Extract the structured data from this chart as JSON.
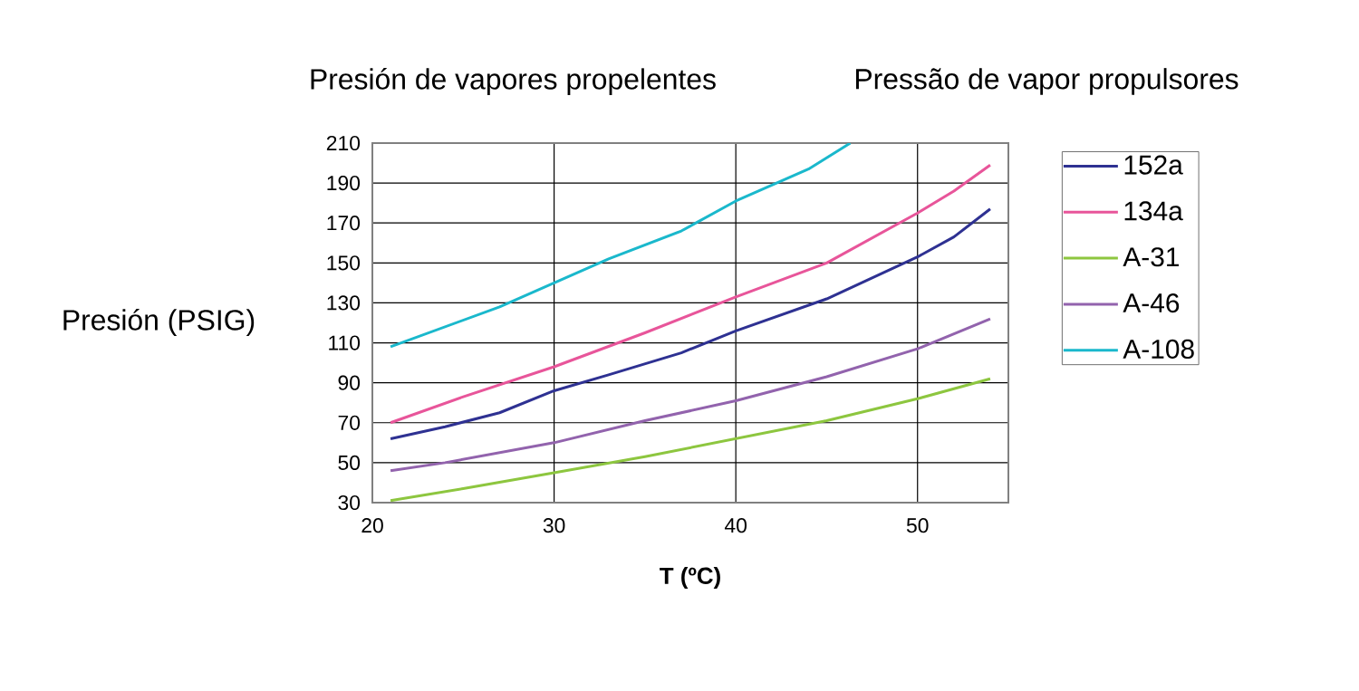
{
  "chart_data": {
    "type": "line",
    "title": "Presión de vapores propelentes",
    "subtitle": "Pressão de vapor propulsores",
    "xlabel": "T (ºC)",
    "ylabel": "Presión (PSIG)",
    "xlim": [
      20,
      55
    ],
    "xticks": [
      20,
      30,
      40,
      50
    ],
    "ylim": [
      30,
      210
    ],
    "yticks": [
      30,
      50,
      70,
      90,
      110,
      130,
      150,
      170,
      190,
      210
    ],
    "grid": true,
    "legend": "right",
    "series": [
      {
        "name": "152a",
        "color": "#2e3192",
        "x": [
          21,
          24,
          27,
          30,
          33,
          37,
          40,
          45,
          50,
          52,
          54
        ],
        "values": [
          62,
          68,
          75,
          86,
          94,
          105,
          116,
          132,
          153,
          163,
          177
        ]
      },
      {
        "name": "134a",
        "color": "#e8559a",
        "x": [
          21,
          25,
          30,
          35,
          40,
          45,
          50,
          52,
          54
        ],
        "values": [
          70,
          83,
          98,
          115,
          133,
          150,
          175,
          186,
          199
        ]
      },
      {
        "name": "A-31",
        "color": "#8dc63f",
        "x": [
          21,
          25,
          30,
          35,
          40,
          45,
          50,
          54
        ],
        "values": [
          31,
          37,
          45,
          53,
          62,
          71,
          82,
          92
        ]
      },
      {
        "name": "A-46",
        "color": "#9263ad",
        "x": [
          21,
          24,
          27,
          30,
          35,
          40,
          45,
          50,
          54
        ],
        "values": [
          46,
          50,
          55,
          60,
          71,
          81,
          93,
          107,
          122
        ]
      },
      {
        "name": "A-108",
        "color": "#1ab8cc",
        "x": [
          21,
          24,
          27,
          30,
          33,
          37,
          40,
          44,
          46.3
        ],
        "values": [
          108,
          118,
          128,
          140,
          152,
          166,
          181,
          197,
          210
        ]
      }
    ]
  }
}
